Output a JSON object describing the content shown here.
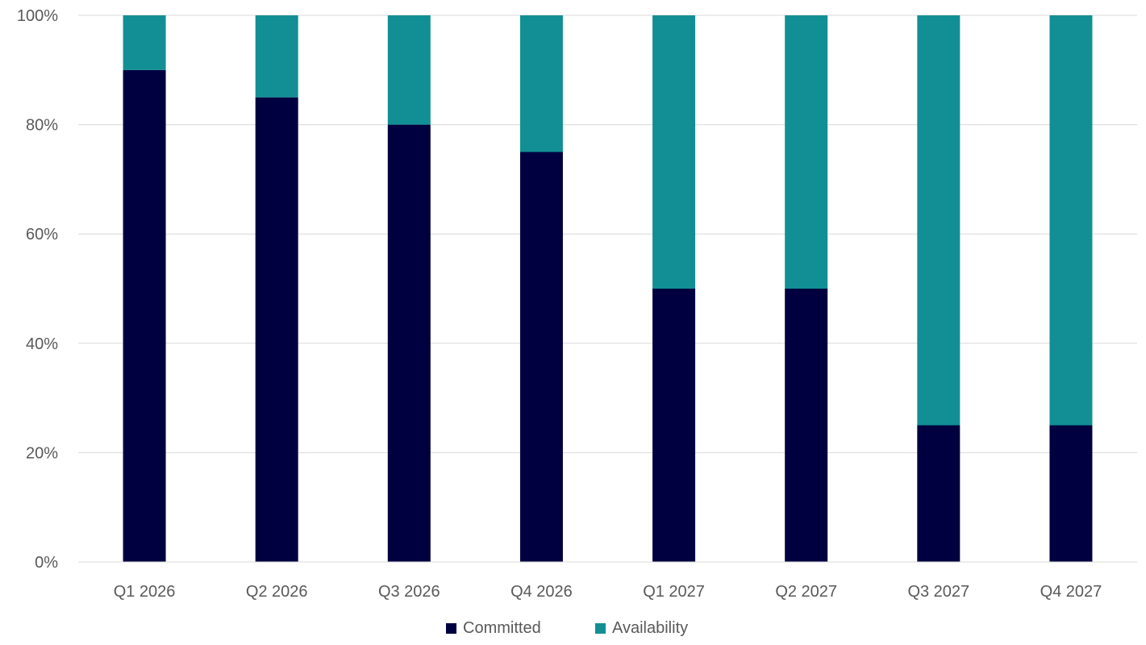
{
  "chart_data": {
    "type": "bar",
    "stacked": true,
    "percent_stacked": true,
    "categories": [
      "Q1 2026",
      "Q2 2026",
      "Q3 2026",
      "Q4 2026",
      "Q1 2027",
      "Q2 2027",
      "Q3 2027",
      "Q4 2027"
    ],
    "series": [
      {
        "name": "Committed",
        "color": "#000040",
        "values": [
          90,
          85,
          80,
          75,
          50,
          50,
          25,
          25
        ]
      },
      {
        "name": "Availability",
        "color": "#128F94",
        "values": [
          10,
          15,
          20,
          25,
          50,
          50,
          75,
          75
        ]
      }
    ],
    "y_ticks": [
      "0%",
      "20%",
      "40%",
      "60%",
      "80%",
      "100%"
    ],
    "ylim": [
      0,
      100
    ],
    "grid": true,
    "legend_position": "bottom",
    "title": "",
    "xlabel": "",
    "ylabel": ""
  }
}
